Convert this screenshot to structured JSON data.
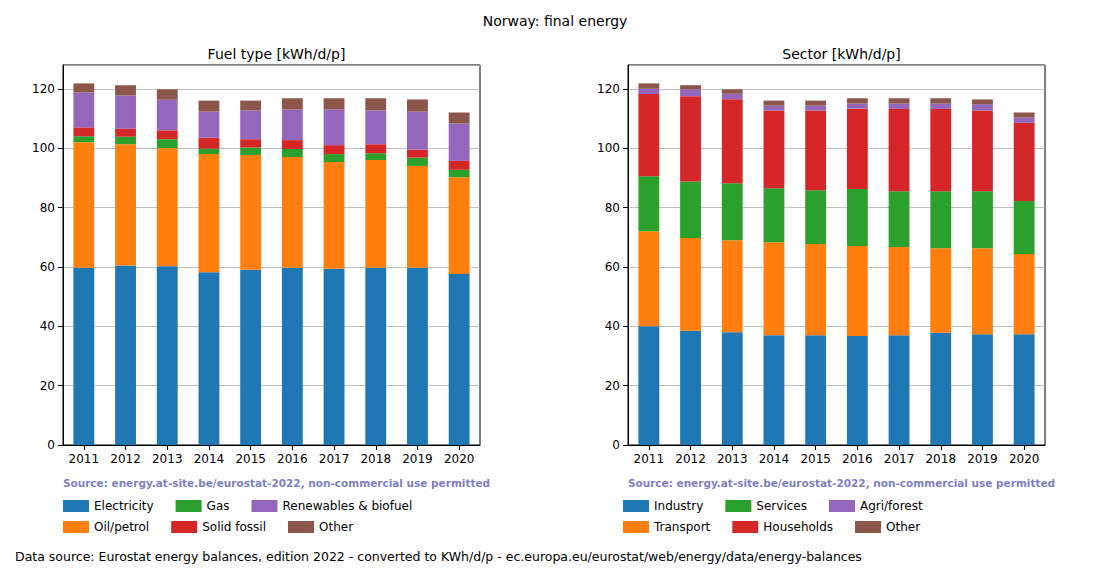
{
  "title": "Norway: final energy",
  "footnote": "Data source: Eurostat energy balances, edition 2022 - converted to KWh/d/p - ec.europa.eu/eurostat/web/energy/data/energy-balances",
  "chart_data": [
    {
      "type": "bar",
      "title": "Fuel type [kWh/d/p]",
      "annotation": "Source: energy.at-site.be/eurostat-2022, non-commercial use permitted",
      "categories": [
        "2011",
        "2012",
        "2013",
        "2014",
        "2015",
        "2016",
        "2017",
        "2018",
        "2019",
        "2020"
      ],
      "stacked": true,
      "grid": true,
      "legend": "bottom",
      "ylim": [
        0,
        128
      ],
      "yticks": [
        0,
        20,
        40,
        60,
        80,
        100,
        120
      ],
      "series": [
        {
          "name": "Electricity",
          "color": "#1f77b4",
          "values": [
            59.7,
            60.5,
            60.2,
            58.2,
            59.0,
            59.7,
            59.4,
            59.7,
            59.7,
            57.6
          ]
        },
        {
          "name": "Oil/petrol",
          "color": "#ff7f0e",
          "values": [
            42.3,
            40.8,
            39.8,
            39.8,
            38.7,
            37.3,
            35.9,
            36.3,
            34.3,
            32.6
          ]
        },
        {
          "name": "Gas",
          "color": "#2ca02c",
          "values": [
            2.0,
            2.5,
            3.0,
            1.8,
            2.5,
            2.7,
            2.7,
            2.3,
            2.8,
            2.5
          ]
        },
        {
          "name": "Solid fossil",
          "color": "#d62728",
          "values": [
            3.0,
            2.7,
            3.0,
            3.7,
            2.8,
            3.0,
            3.0,
            3.0,
            2.7,
            3.0
          ]
        },
        {
          "name": "Renewables & biofuel",
          "color": "#9467bd",
          "values": [
            11.7,
            11.2,
            10.3,
            8.8,
            9.7,
            10.3,
            12.0,
            11.4,
            12.8,
            12.6
          ]
        },
        {
          "name": "Other",
          "color": "#8c564b",
          "values": [
            3.1,
            3.5,
            3.5,
            3.7,
            3.3,
            3.8,
            3.8,
            4.1,
            4.1,
            3.7
          ]
        }
      ]
    },
    {
      "type": "bar",
      "title": "Sector [kWh/d/p]",
      "annotation": "Source: energy.at-site.be/eurostat-2022, non-commercial use permitted",
      "categories": [
        "2011",
        "2012",
        "2013",
        "2014",
        "2015",
        "2016",
        "2017",
        "2018",
        "2019",
        "2020"
      ],
      "stacked": true,
      "grid": true,
      "legend": "bottom",
      "ylim": [
        0,
        128
      ],
      "yticks": [
        0,
        20,
        40,
        60,
        80,
        100,
        120
      ],
      "series": [
        {
          "name": "Industry",
          "color": "#1f77b4",
          "values": [
            40.0,
            38.5,
            38.0,
            37.0,
            37.0,
            36.7,
            37.0,
            37.8,
            37.3,
            37.3
          ]
        },
        {
          "name": "Transport",
          "color": "#ff7f0e",
          "values": [
            32.0,
            31.2,
            31.0,
            31.3,
            30.7,
            30.3,
            29.7,
            28.5,
            29.0,
            27.0
          ]
        },
        {
          "name": "Services",
          "color": "#2ca02c",
          "values": [
            18.5,
            19.1,
            19.2,
            18.2,
            18.1,
            19.2,
            18.8,
            19.2,
            19.2,
            17.9
          ]
        },
        {
          "name": "Households",
          "color": "#d62728",
          "values": [
            27.7,
            28.7,
            28.3,
            26.2,
            26.9,
            27.1,
            27.7,
            27.7,
            27.2,
            26.3
          ]
        },
        {
          "name": "Agri/forest",
          "color": "#9467bd",
          "values": [
            1.8,
            2.3,
            1.8,
            1.6,
            1.6,
            1.7,
            1.8,
            1.8,
            2.1,
            1.8
          ]
        },
        {
          "name": "Other",
          "color": "#8c564b",
          "values": [
            1.8,
            1.4,
            1.5,
            1.7,
            1.7,
            1.8,
            1.8,
            1.8,
            1.6,
            1.7
          ]
        }
      ]
    }
  ]
}
